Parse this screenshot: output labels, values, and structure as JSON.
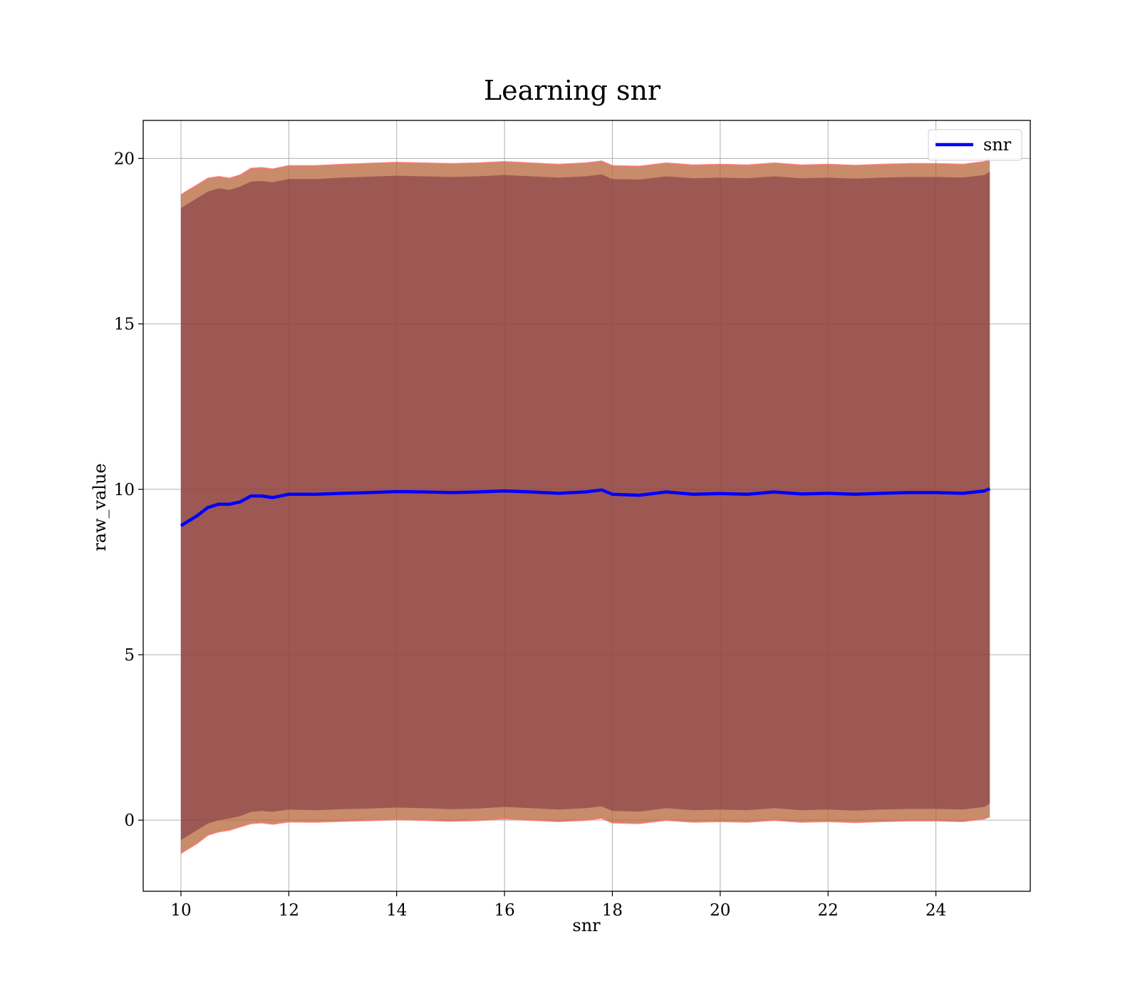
{
  "chart_data": {
    "type": "line",
    "title": "Learning snr",
    "xlabel": "snr",
    "ylabel": "raw_value",
    "xlim": [
      9.3,
      25.75
    ],
    "ylim": [
      -2.15,
      21.15
    ],
    "x_ticks": [
      "10",
      "12",
      "14",
      "16",
      "18",
      "20",
      "22",
      "24"
    ],
    "y_ticks": [
      "0",
      "5",
      "10",
      "15",
      "20"
    ],
    "grid": true,
    "legend": {
      "position": "top-right",
      "entries": [
        "snr"
      ]
    },
    "colors": {
      "mean_line": "#0000ff",
      "inner_band": "#7b2d42",
      "outer_band": "#b5653a",
      "outer_band_edge": "#ff6b6b",
      "grid": "#b0b0b0"
    },
    "series": [
      {
        "name": "snr",
        "x": [
          10.0,
          10.1,
          10.3,
          10.5,
          10.7,
          10.9,
          11.1,
          11.3,
          11.5,
          11.7,
          12.0,
          12.5,
          13.0,
          13.5,
          14.0,
          14.5,
          15.0,
          15.5,
          16.0,
          16.5,
          17.0,
          17.5,
          17.8,
          18.0,
          18.5,
          19.0,
          19.5,
          20.0,
          20.5,
          21.0,
          21.5,
          22.0,
          22.5,
          23.0,
          23.5,
          24.0,
          24.5,
          24.9,
          25.0
        ],
        "mean": [
          8.9,
          9.0,
          9.2,
          9.45,
          9.55,
          9.55,
          9.62,
          9.8,
          9.8,
          9.75,
          9.85,
          9.85,
          9.88,
          9.9,
          9.93,
          9.92,
          9.9,
          9.92,
          9.95,
          9.92,
          9.88,
          9.92,
          9.98,
          9.85,
          9.82,
          9.92,
          9.85,
          9.87,
          9.85,
          9.92,
          9.86,
          9.88,
          9.85,
          9.88,
          9.9,
          9.9,
          9.88,
          9.95,
          10.02
        ],
        "inner_lower": [
          -0.6,
          -0.5,
          -0.3,
          -0.1,
          0.0,
          0.05,
          0.12,
          0.25,
          0.28,
          0.25,
          0.32,
          0.3,
          0.33,
          0.35,
          0.38,
          0.36,
          0.33,
          0.35,
          0.4,
          0.36,
          0.32,
          0.36,
          0.42,
          0.28,
          0.26,
          0.36,
          0.3,
          0.32,
          0.3,
          0.36,
          0.3,
          0.32,
          0.29,
          0.32,
          0.34,
          0.34,
          0.32,
          0.4,
          0.5
        ],
        "inner_upper": [
          18.5,
          18.6,
          18.8,
          19.0,
          19.1,
          19.05,
          19.15,
          19.3,
          19.32,
          19.28,
          19.38,
          19.38,
          19.42,
          19.45,
          19.48,
          19.46,
          19.44,
          19.46,
          19.5,
          19.46,
          19.42,
          19.46,
          19.52,
          19.38,
          19.36,
          19.46,
          19.4,
          19.42,
          19.4,
          19.46,
          19.4,
          19.42,
          19.39,
          19.42,
          19.44,
          19.44,
          19.42,
          19.5,
          19.6
        ],
        "outer_lower": [
          -1.0,
          -0.9,
          -0.7,
          -0.45,
          -0.35,
          -0.3,
          -0.2,
          -0.1,
          -0.08,
          -0.12,
          -0.05,
          -0.06,
          -0.03,
          -0.01,
          0.02,
          0.0,
          -0.03,
          -0.01,
          0.04,
          0.0,
          -0.04,
          0.0,
          0.06,
          -0.08,
          -0.1,
          0.0,
          -0.06,
          -0.04,
          -0.06,
          0.0,
          -0.06,
          -0.04,
          -0.07,
          -0.04,
          -0.02,
          -0.02,
          -0.04,
          0.04,
          0.1
        ],
        "outer_upper": [
          18.9,
          19.0,
          19.2,
          19.4,
          19.45,
          19.4,
          19.5,
          19.7,
          19.72,
          19.68,
          19.78,
          19.78,
          19.82,
          19.85,
          19.88,
          19.86,
          19.84,
          19.86,
          19.9,
          19.86,
          19.82,
          19.86,
          19.92,
          19.78,
          19.76,
          19.86,
          19.8,
          19.82,
          19.8,
          19.86,
          19.8,
          19.82,
          19.79,
          19.82,
          19.84,
          19.84,
          19.82,
          19.9,
          20.0
        ]
      }
    ]
  }
}
